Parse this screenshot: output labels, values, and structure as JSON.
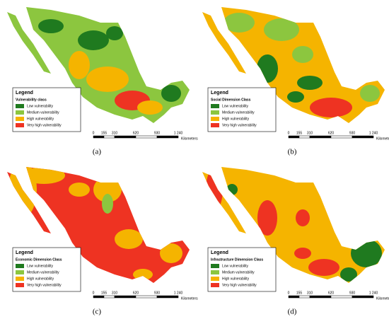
{
  "panels": [
    {
      "caption": "(a)",
      "legend_title": "Legend",
      "class_title": "Vulnerability class",
      "items": [
        {
          "label": "Low vulnerability",
          "color": "#1f7a1f"
        },
        {
          "label": "Medium vulnerability",
          "color": "#8cc63f"
        },
        {
          "label": "High vulnerability",
          "color": "#f5b400"
        },
        {
          "label": "Very high vulnerability",
          "color": "#ee3322"
        }
      ],
      "scale_labels": [
        "0",
        "155",
        "310",
        "620",
        "930",
        "1 240",
        "Kilometers"
      ]
    },
    {
      "caption": "(b)",
      "legend_title": "Legend",
      "class_title": "Social Dimension Class",
      "items": [
        {
          "label": "Low vulnerability",
          "color": "#1f7a1f"
        },
        {
          "label": "Medium vulnerability",
          "color": "#8cc63f"
        },
        {
          "label": "High vulnerability",
          "color": "#f5b400"
        },
        {
          "label": "Very high vulnerability",
          "color": "#ee3322"
        }
      ],
      "scale_labels": [
        "0",
        "155",
        "310",
        "620",
        "930",
        "1 240",
        "Kilometers"
      ]
    },
    {
      "caption": "(c)",
      "legend_title": "Legend",
      "class_title": "Economic Dimension Class",
      "items": [
        {
          "label": "Low vulnerability",
          "color": "#1f7a1f"
        },
        {
          "label": "Medium vulnerability",
          "color": "#8cc63f"
        },
        {
          "label": "High vulnerability",
          "color": "#f5b400"
        },
        {
          "label": "Very high vulnerability",
          "color": "#ee3322"
        }
      ],
      "scale_labels": [
        "0",
        "155",
        "310",
        "620",
        "930",
        "1 240",
        "Kilometers"
      ]
    },
    {
      "caption": "(d)",
      "legend_title": "Legend",
      "class_title": "Infrastructure Dimension Class",
      "items": [
        {
          "label": "Low vulnerability",
          "color": "#1f7a1f"
        },
        {
          "label": "Medium vulnerability",
          "color": "#8cc63f"
        },
        {
          "label": "High vulnerability",
          "color": "#f5b400"
        },
        {
          "label": "Very high vulnerability",
          "color": "#ee3322"
        }
      ],
      "scale_labels": [
        "0",
        "155",
        "310",
        "620",
        "930",
        "1 240",
        "Kilometers"
      ]
    }
  ]
}
